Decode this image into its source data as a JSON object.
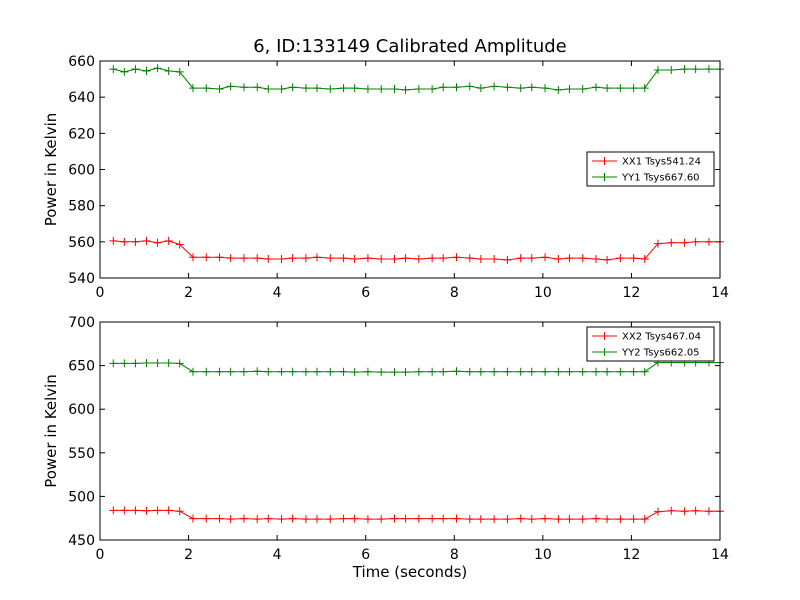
{
  "title": "6, ID:133149 Calibrated Amplitude",
  "chart_data": [
    {
      "type": "line",
      "title": "6, ID:133149 Calibrated Amplitude",
      "xlabel": "",
      "ylabel": "Power in Kelvin",
      "xlim": [
        0,
        14
      ],
      "ylim": [
        540,
        660
      ],
      "xticks": [
        "0",
        "2",
        "4",
        "6",
        "8",
        "10",
        "12",
        "14"
      ],
      "yticks": [
        "540",
        "560",
        "580",
        "600",
        "620",
        "640",
        "660"
      ],
      "legend_position": "center-right",
      "x": [
        0.3,
        0.55,
        0.8,
        1.05,
        1.3,
        1.55,
        1.8,
        2.1,
        2.4,
        2.7,
        2.95,
        3.25,
        3.55,
        3.8,
        4.1,
        4.35,
        4.65,
        4.9,
        5.2,
        5.5,
        5.75,
        6.05,
        6.35,
        6.65,
        6.9,
        7.2,
        7.5,
        7.75,
        8.05,
        8.35,
        8.6,
        8.9,
        9.2,
        9.5,
        9.75,
        10.05,
        10.35,
        10.6,
        10.9,
        11.2,
        11.45,
        11.75,
        12.05,
        12.3,
        12.6,
        12.9,
        13.2,
        13.45,
        13.75,
        14.0
      ],
      "series": [
        {
          "name": "XX1 Tsys541.24",
          "color": "#ff0000",
          "values": [
            560.5,
            560,
            560,
            560.5,
            559.5,
            560.5,
            558.5,
            551.5,
            551.5,
            551.5,
            551,
            551,
            551,
            550.5,
            550.5,
            551,
            551,
            551.5,
            551,
            551,
            550.5,
            551,
            550.5,
            550.5,
            551,
            550.5,
            551,
            551,
            551.5,
            551,
            550.5,
            550.5,
            550,
            551,
            551,
            551.5,
            550.5,
            551,
            551,
            550.5,
            550,
            551,
            551,
            550.5,
            559,
            559.5,
            559.5,
            560,
            560,
            560
          ]
        },
        {
          "name": "YY1 Tsys667.60",
          "color": "#008000",
          "values": [
            655.5,
            654,
            655.5,
            654.5,
            656,
            654.5,
            654,
            645,
            645,
            644.5,
            646,
            645.5,
            645.5,
            644.5,
            644.5,
            645.5,
            645,
            645,
            644.5,
            645,
            645,
            644.5,
            644.5,
            644.5,
            644,
            644.5,
            644.5,
            645.5,
            645.5,
            646,
            645,
            646,
            645.5,
            645,
            645.5,
            645,
            644,
            644.5,
            644.5,
            645.5,
            645,
            645,
            645,
            645,
            655,
            655,
            655.5,
            655.5,
            655.5,
            655.5
          ]
        }
      ]
    },
    {
      "type": "line",
      "title": "",
      "xlabel": "Time (seconds)",
      "ylabel": "Power in Kelvin",
      "xlim": [
        0,
        14
      ],
      "ylim": [
        450,
        700
      ],
      "xticks": [
        "0",
        "2",
        "4",
        "6",
        "8",
        "10",
        "12",
        "14"
      ],
      "yticks": [
        "450",
        "500",
        "550",
        "600",
        "650",
        "700"
      ],
      "legend_position": "upper-right",
      "x": [
        0.3,
        0.55,
        0.8,
        1.05,
        1.3,
        1.55,
        1.8,
        2.1,
        2.4,
        2.7,
        2.95,
        3.25,
        3.55,
        3.8,
        4.1,
        4.35,
        4.65,
        4.9,
        5.2,
        5.5,
        5.75,
        6.05,
        6.35,
        6.65,
        6.9,
        7.2,
        7.5,
        7.75,
        8.05,
        8.35,
        8.6,
        8.9,
        9.2,
        9.5,
        9.75,
        10.05,
        10.35,
        10.6,
        10.9,
        11.2,
        11.45,
        11.75,
        12.05,
        12.3,
        12.6,
        12.9,
        13.2,
        13.45,
        13.75,
        14.0
      ],
      "series": [
        {
          "name": "XX2 Tsys467.04",
          "color": "#ff0000",
          "values": [
            484,
            484,
            484,
            483.5,
            484,
            484,
            483,
            474.5,
            474.5,
            474.5,
            474,
            474.5,
            474,
            474.5,
            474,
            474.5,
            474,
            474,
            474,
            474.5,
            474.5,
            474,
            474,
            474.5,
            474.5,
            474.5,
            474.5,
            474.5,
            474.5,
            474,
            474,
            474,
            474,
            474.5,
            474,
            474.5,
            474,
            474,
            474,
            474.5,
            474,
            474,
            474,
            474,
            482.5,
            483.5,
            483,
            483.5,
            483,
            483
          ]
        },
        {
          "name": "YY2 Tsys662.05",
          "color": "#008000",
          "values": [
            652.5,
            652.5,
            652.5,
            653,
            653,
            653,
            652.5,
            643,
            643,
            643,
            643,
            643,
            643.5,
            643,
            643,
            643,
            643,
            643,
            643,
            643,
            642.5,
            643,
            642.5,
            642.5,
            642.5,
            643,
            643,
            643,
            643.5,
            643,
            643,
            643,
            643,
            643,
            643,
            643,
            643,
            643,
            643,
            643,
            643,
            643,
            643,
            643,
            653.5,
            653.5,
            653.5,
            653.5,
            653.5,
            653.5
          ]
        }
      ]
    }
  ]
}
